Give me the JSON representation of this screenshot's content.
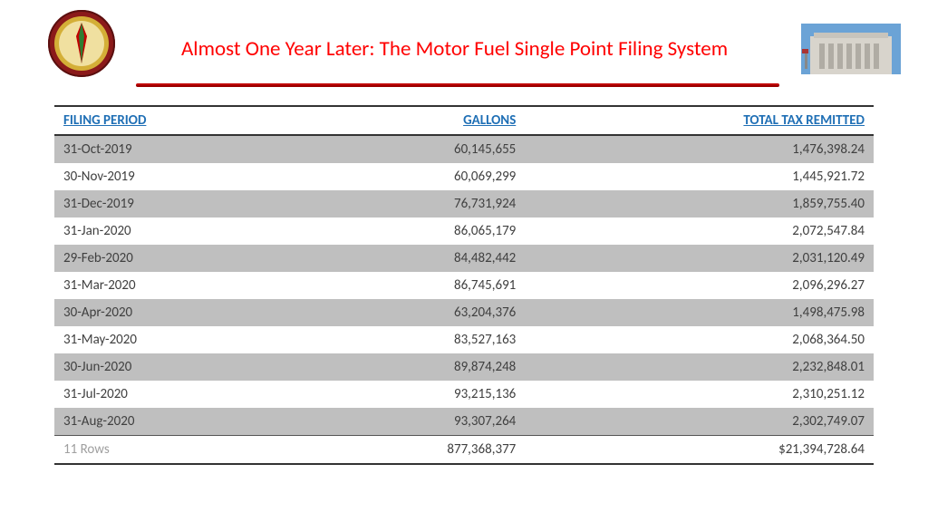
{
  "title": "Almost One Year Later: The Motor Fuel Single Point Filing System",
  "title_color": "#ff0000",
  "title_fontsize": 23,
  "divider_color": "#c00000",
  "table": {
    "header_color": "#1f6fb5",
    "row_odd_bg": "#bfbfbf",
    "row_even_bg": "#ffffff",
    "columns": [
      {
        "label": "FILING PERIOD",
        "align": "left"
      },
      {
        "label": "GALLONS",
        "align": "right"
      },
      {
        "label": "TOTAL TAX REMITTED",
        "align": "right"
      }
    ],
    "rows": [
      {
        "period": "31-Oct-2019",
        "gallons": "60,145,655",
        "tax": "1,476,398.24"
      },
      {
        "period": "30-Nov-2019",
        "gallons": "60,069,299",
        "tax": "1,445,921.72"
      },
      {
        "period": "31-Dec-2019",
        "gallons": "76,731,924",
        "tax": "1,859,755.40"
      },
      {
        "period": "31-Jan-2020",
        "gallons": "86,065,179",
        "tax": "2,072,547.84"
      },
      {
        "period": "29-Feb-2020",
        "gallons": "84,482,442",
        "tax": "2,031,120.49"
      },
      {
        "period": "31-Mar-2020",
        "gallons": "86,745,691",
        "tax": "2,096,296.27"
      },
      {
        "period": "30-Apr-2020",
        "gallons": "63,204,376",
        "tax": "1,498,475.98"
      },
      {
        "period": "31-May-2020",
        "gallons": "83,527,163",
        "tax": "2,068,364.50"
      },
      {
        "period": "30-Jun-2020",
        "gallons": "89,874,248",
        "tax": "2,232,848.01"
      },
      {
        "period": "31-Jul-2020",
        "gallons": "93,215,136",
        "tax": "2,310,251.12"
      },
      {
        "period": "31-Aug-2020",
        "gallons": "93,307,264",
        "tax": "2,302,749.07"
      }
    ],
    "footer": {
      "label": "11 Rows",
      "gallons": "877,368,377",
      "tax": "$21,394,728.64"
    }
  },
  "seal_colors": {
    "outer": "#8b1a1a",
    "inner": "#d4af37",
    "center": "#c00000"
  },
  "building_colors": {
    "sky": "#6ba3d6",
    "stone": "#d8d4cc"
  }
}
